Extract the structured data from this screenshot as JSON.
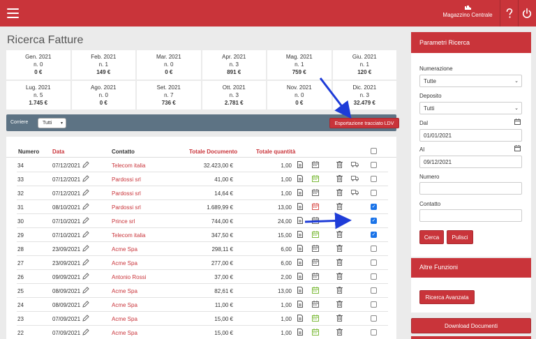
{
  "topbar": {
    "warehouse_label": "Magazzino Centrale",
    "icons": [
      "menu-icon",
      "warehouse-icon",
      "help-icon",
      "power-icon"
    ],
    "color": "#c9343a"
  },
  "page_title": "Ricerca Fatture",
  "months": [
    {
      "name": "Gen. 2021",
      "count": "n. 0",
      "value": "0 €"
    },
    {
      "name": "Feb. 2021",
      "count": "n. 1",
      "value": "149 €"
    },
    {
      "name": "Mar. 2021",
      "count": "n. 0",
      "value": "0 €"
    },
    {
      "name": "Apr. 2021",
      "count": "n. 3",
      "value": "891 €"
    },
    {
      "name": "Mag. 2021",
      "count": "n. 1",
      "value": "759 €"
    },
    {
      "name": "Giu. 2021",
      "count": "n. 1",
      "value": "120 €"
    },
    {
      "name": "Lug. 2021",
      "count": "n. 5",
      "value": "1.745 €"
    },
    {
      "name": "Ago. 2021",
      "count": "n. 0",
      "value": "0 €"
    },
    {
      "name": "Set. 2021",
      "count": "n. 7",
      "value": "736 €"
    },
    {
      "name": "Ott. 2021",
      "count": "n. 3",
      "value": "2.781 €"
    },
    {
      "name": "Nov. 2021",
      "count": "n. 0",
      "value": "0 €"
    },
    {
      "name": "Dic. 2021",
      "count": "n. 3",
      "value": "32.479 €"
    }
  ],
  "filterbar": {
    "courier_label": "Corriere",
    "courier_value": "Tutti",
    "export_label": "Esportazione tracciato LDV"
  },
  "table": {
    "headers": {
      "numero": "Numero",
      "data": "Data",
      "contatto": "Contatto",
      "totale": "Totale Documento",
      "quantita": "Totale quantità"
    },
    "rows": [
      {
        "num": "34",
        "date": "07/12/2021",
        "contact": "Telecom italia",
        "total": "32.423,00 €",
        "qty": "1,00",
        "cal": "grey",
        "truck": true,
        "checked": false
      },
      {
        "num": "33",
        "date": "07/12/2021",
        "contact": "Pardossi srl",
        "total": "41,00 €",
        "qty": "1,00",
        "cal": "green",
        "truck": true,
        "checked": false
      },
      {
        "num": "32",
        "date": "07/12/2021",
        "contact": "Pardossi srl",
        "total": "14,64 €",
        "qty": "1,00",
        "cal": "grey",
        "truck": true,
        "checked": false
      },
      {
        "num": "31",
        "date": "08/10/2021",
        "contact": "Pardossi srl",
        "total": "1.689,99 €",
        "qty": "13,00",
        "cal": "red",
        "truck": false,
        "checked": true
      },
      {
        "num": "30",
        "date": "07/10/2021",
        "contact": "Prince srl",
        "total": "744,00 €",
        "qty": "24,00",
        "cal": "grey",
        "truck": false,
        "checked": true
      },
      {
        "num": "29",
        "date": "07/10/2021",
        "contact": "Telecom italia",
        "total": "347,50 €",
        "qty": "15,00",
        "cal": "green",
        "truck": false,
        "checked": true
      },
      {
        "num": "28",
        "date": "23/09/2021",
        "contact": "Acme Spa",
        "total": "298,11 €",
        "qty": "6,00",
        "cal": "grey",
        "truck": false,
        "checked": false
      },
      {
        "num": "27",
        "date": "23/09/2021",
        "contact": "Acme Spa",
        "total": "277,00 €",
        "qty": "6,00",
        "cal": "grey",
        "truck": false,
        "checked": false
      },
      {
        "num": "26",
        "date": "09/09/2021",
        "contact": "Antonio Rossi",
        "total": "37,00 €",
        "qty": "2,00",
        "cal": "grey",
        "truck": false,
        "checked": false
      },
      {
        "num": "25",
        "date": "08/09/2021",
        "contact": "Acme Spa",
        "total": "82,61 €",
        "qty": "13,00",
        "cal": "green",
        "truck": false,
        "checked": false
      },
      {
        "num": "24",
        "date": "08/09/2021",
        "contact": "Acme Spa",
        "total": "11,00 €",
        "qty": "1,00",
        "cal": "grey",
        "truck": false,
        "checked": false
      },
      {
        "num": "23",
        "date": "07/09/2021",
        "contact": "Acme Spa",
        "total": "15,00 €",
        "qty": "1,00",
        "cal": "green",
        "truck": false,
        "checked": false
      },
      {
        "num": "22",
        "date": "07/09/2021",
        "contact": "Acme Spa",
        "total": "15,00 €",
        "qty": "1,00",
        "cal": "green",
        "truck": false,
        "checked": false
      }
    ]
  },
  "search_panel": {
    "title": "Parametri Ricerca",
    "numerazione_label": "Numerazione",
    "numerazione_value": "Tutte",
    "deposito_label": "Deposito",
    "deposito_value": "Tutti",
    "dal_label": "Dal",
    "dal_value": "01/01/2021",
    "al_label": "Al",
    "al_value": "09/12/2021",
    "numero_label": "Numero",
    "numero_value": "",
    "contatto_label": "Contatto",
    "contatto_value": "",
    "search_button": "Cerca",
    "clear_button": "Pulisci"
  },
  "other_panel": {
    "title": "Altre Funzioni",
    "advanced_button": "Ricerca Avanzata",
    "download_button": "Download Documenti"
  },
  "colors": {
    "accent": "#c9343a",
    "filterbar": "#5d7384",
    "checkbox_checked": "#1a73e8",
    "calendar_green": "#7dbb3b",
    "calendar_red": "#d9534f",
    "annotation_arrow": "#1e3cd8"
  }
}
